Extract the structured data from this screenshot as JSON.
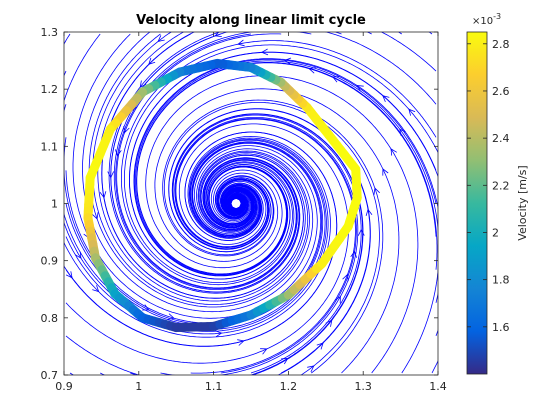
{
  "chart_data": {
    "type": "line",
    "title": "Velocity along linear limit cycle",
    "xlabel": "",
    "ylabel": "",
    "xlim": [
      0.9,
      1.4
    ],
    "ylim": [
      0.7,
      1.3
    ],
    "x_ticks": [
      "0.9",
      "1",
      "1.1",
      "1.2",
      "1.3",
      "1.4"
    ],
    "y_ticks": [
      "0.7",
      "0.8",
      "0.9",
      "1",
      "1.1",
      "1.2",
      "1.3"
    ],
    "grid": false,
    "center": [
      1.13,
      1.0
    ],
    "streamlines": {
      "color": "#0000ff",
      "kind": "spiral vector field converging to (1.13, 1.0)"
    },
    "limit_cycle": {
      "shape": "closed ellipse, colored by speed",
      "points": [
        {
          "x": 1.29,
          "y": 1.06,
          "speed": 2.85
        },
        {
          "x": 1.26,
          "y": 1.11,
          "speed": 2.85
        },
        {
          "x": 1.225,
          "y": 1.168,
          "speed": 2.8
        },
        {
          "x": 1.19,
          "y": 1.212,
          "speed": 2.4
        },
        {
          "x": 1.15,
          "y": 1.238,
          "speed": 1.75
        },
        {
          "x": 1.105,
          "y": 1.245,
          "speed": 1.55
        },
        {
          "x": 1.055,
          "y": 1.23,
          "speed": 1.7
        },
        {
          "x": 1.005,
          "y": 1.195,
          "speed": 2.3
        },
        {
          "x": 0.962,
          "y": 1.13,
          "speed": 2.8
        },
        {
          "x": 0.935,
          "y": 1.045,
          "speed": 2.85
        },
        {
          "x": 0.932,
          "y": 0.975,
          "speed": 2.75
        },
        {
          "x": 0.942,
          "y": 0.905,
          "speed": 2.4
        },
        {
          "x": 0.968,
          "y": 0.842,
          "speed": 1.95
        },
        {
          "x": 1.005,
          "y": 0.8,
          "speed": 1.6
        },
        {
          "x": 1.05,
          "y": 0.783,
          "speed": 1.45
        },
        {
          "x": 1.1,
          "y": 0.785,
          "speed": 1.45
        },
        {
          "x": 1.15,
          "y": 0.805,
          "speed": 1.7
        },
        {
          "x": 1.2,
          "y": 0.84,
          "speed": 2.3
        },
        {
          "x": 1.245,
          "y": 0.895,
          "speed": 2.8
        },
        {
          "x": 1.28,
          "y": 0.96,
          "speed": 2.85
        },
        {
          "x": 1.292,
          "y": 1.01,
          "speed": 2.85
        }
      ]
    },
    "colorbar": {
      "label": "Velocity [m/s]",
      "exponent_label": "×10",
      "exponent_power": "-3",
      "range": [
        1.4,
        2.85
      ],
      "ticks": [
        "1.6",
        "1.8",
        "2",
        "2.2",
        "2.4",
        "2.6",
        "2.8"
      ],
      "colormap": [
        "#352a87",
        "#0363e1",
        "#1485d4",
        "#06a7c6",
        "#38b99e",
        "#92bf73",
        "#d9ba56",
        "#fcce2e",
        "#f9fb0e"
      ]
    }
  }
}
